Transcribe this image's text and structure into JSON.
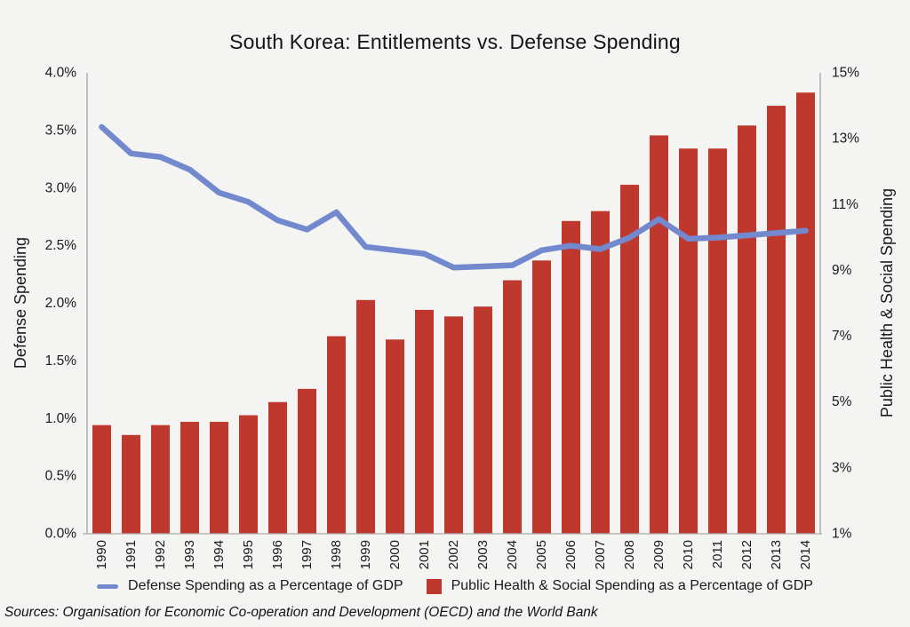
{
  "title": "South Korea: Entitlements vs. Defense Spending",
  "source": "Sources: Organisation for Economic Co-operation and Development (OECD) and the World Bank",
  "colors": {
    "line": "#7289CE",
    "bar": "#BE382D",
    "background": "#F4F4F2",
    "axis": "#ABABAB",
    "text": "#1A1A1A"
  },
  "legend": {
    "line_label": "Defense Spending as a Percentage of GDP",
    "bar_label": "Public Health & Social Spending as a Percentage of GDP"
  },
  "left_axis": {
    "title": "Defense Spending",
    "ticks": [
      {
        "label": "4.0%",
        "value": 4.0
      },
      {
        "label": "3.5%",
        "value": 3.5
      },
      {
        "label": "3.0%",
        "value": 3.0
      },
      {
        "label": "2.5%",
        "value": 2.5
      },
      {
        "label": "2.0%",
        "value": 2.0
      },
      {
        "label": "1.5%",
        "value": 1.5
      },
      {
        "label": "1.0%",
        "value": 1.0
      },
      {
        "label": "0.5%",
        "value": 0.5
      },
      {
        "label": "0.0%",
        "value": 0.0
      }
    ]
  },
  "right_axis": {
    "title": "Public Health & Social Spending",
    "ticks": [
      {
        "label": "15%",
        "value": 15
      },
      {
        "label": "13%",
        "value": 13
      },
      {
        "label": "11%",
        "value": 11
      },
      {
        "label": "9%",
        "value": 9
      },
      {
        "label": "7%",
        "value": 7
      },
      {
        "label": "5%",
        "value": 5
      },
      {
        "label": "3%",
        "value": 3
      },
      {
        "label": "1%",
        "value": 1
      }
    ]
  },
  "chart_data": {
    "type": "bar",
    "subtype": "bar-and-line-dual-axis",
    "title": "South Korea: Entitlements vs. Defense Spending",
    "categories": [
      "1990",
      "1991",
      "1992",
      "1993",
      "1994",
      "1995",
      "1996",
      "1997",
      "1998",
      "1999",
      "2000",
      "2001",
      "2002",
      "2003",
      "2004",
      "2005",
      "2006",
      "2007",
      "2008",
      "2009",
      "2010",
      "2011",
      "2012",
      "2013",
      "2014"
    ],
    "series": [
      {
        "name": "Defense Spending as a Percentage of GDP",
        "type": "line",
        "axis": "left",
        "color": "#7289CE",
        "values": [
          3.53,
          3.3,
          3.27,
          3.16,
          2.96,
          2.88,
          2.72,
          2.64,
          2.79,
          2.49,
          2.46,
          2.43,
          2.31,
          2.32,
          2.33,
          2.46,
          2.5,
          2.47,
          2.57,
          2.73,
          2.56,
          2.57,
          2.59,
          2.61,
          2.63
        ]
      },
      {
        "name": "Public Health & Social Spending as a Percentage of GDP",
        "type": "bar",
        "axis": "right",
        "color": "#BE382D",
        "values": [
          4.3,
          4.0,
          4.3,
          4.4,
          4.4,
          4.6,
          5.0,
          5.4,
          7.0,
          8.1,
          6.9,
          7.8,
          7.6,
          7.9,
          8.7,
          9.3,
          10.5,
          10.8,
          11.6,
          13.1,
          12.7,
          12.7,
          13.4,
          14.0,
          14.4
        ]
      }
    ],
    "xlabel": "",
    "ylabel_left": "Defense Spending",
    "ylabel_right": "Public Health & Social Spending",
    "left_ylim": [
      0,
      4
    ],
    "right_ylim": [
      1,
      15
    ],
    "grid": false,
    "legend_position": "bottom"
  }
}
